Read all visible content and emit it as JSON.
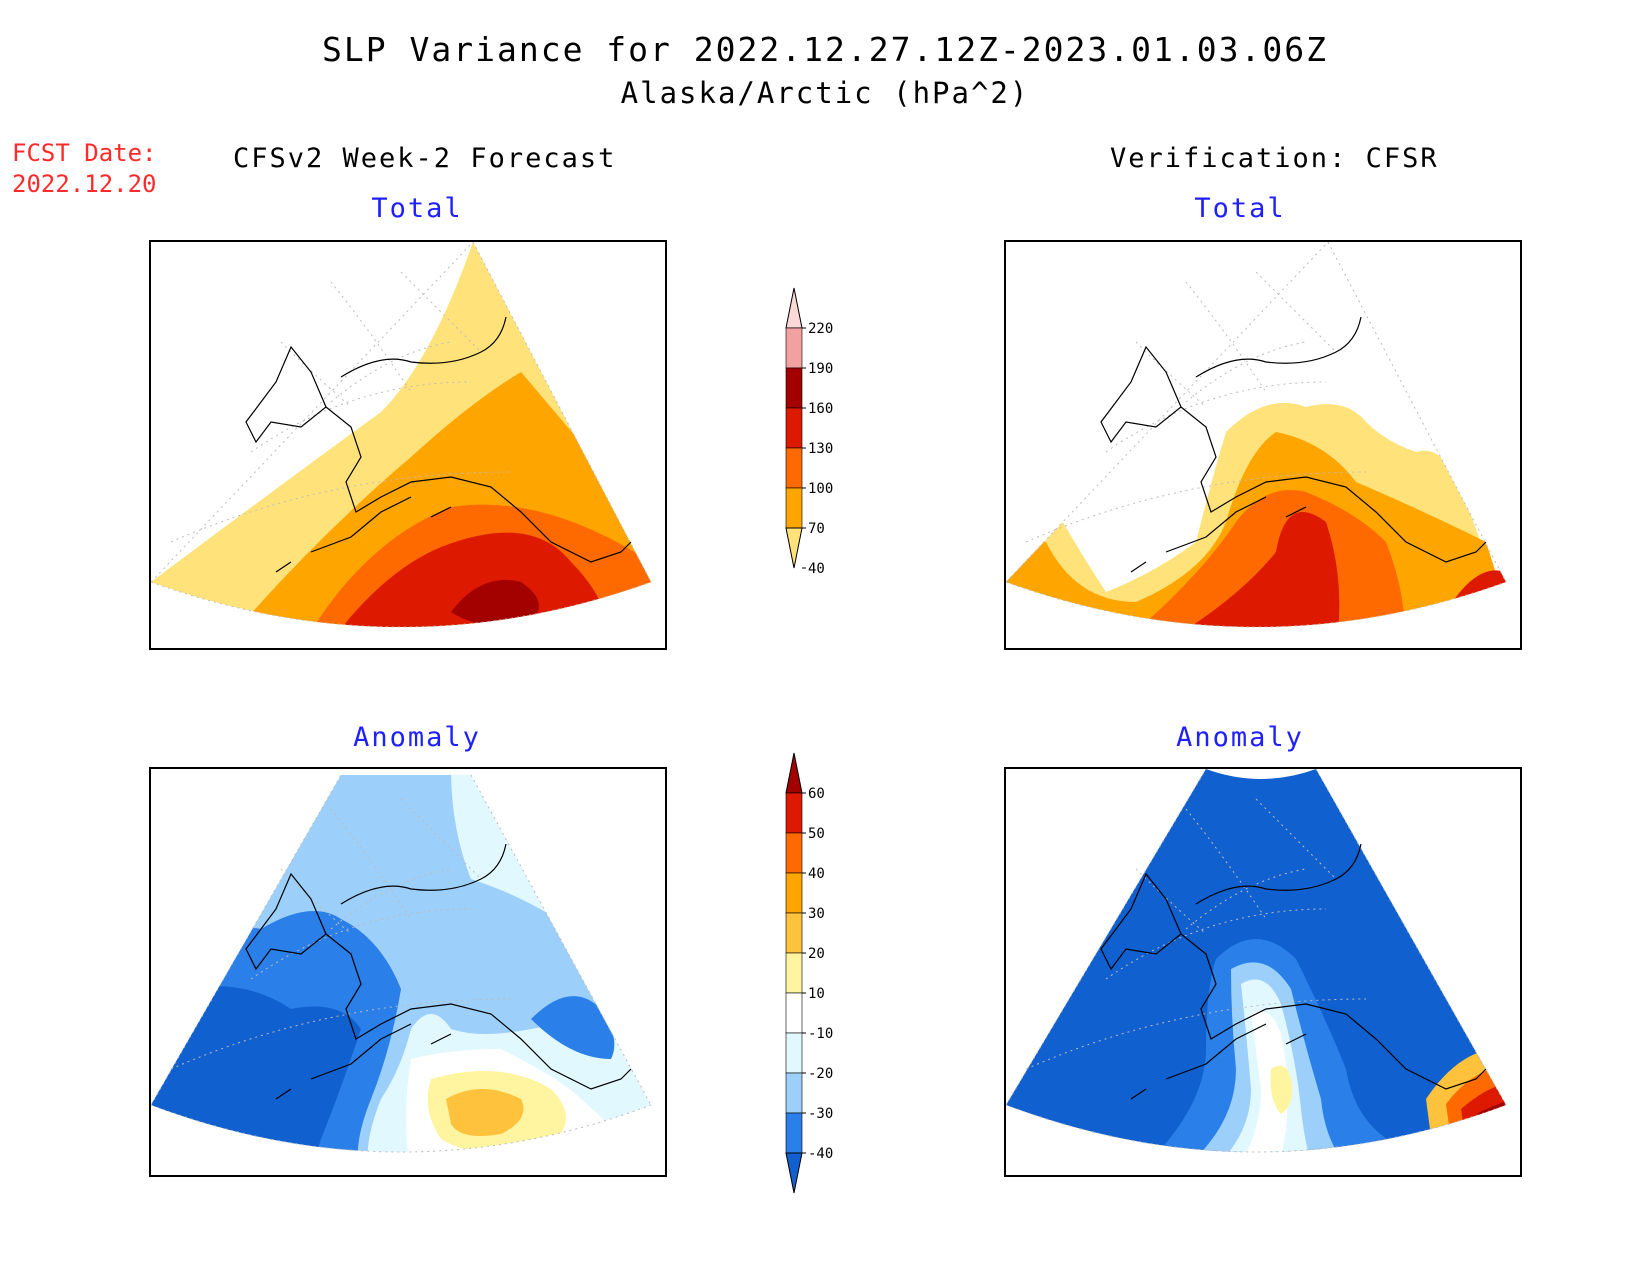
{
  "title": {
    "line1": "SLP Variance for 2022.12.27.12Z-2023.01.03.06Z",
    "line2": "Alaska/Arctic (hPa^2)"
  },
  "fcst_label": {
    "line1": "FCST Date:",
    "line2": "2022.12.20",
    "color": "#ff2a2a"
  },
  "columns": {
    "left": "CFSv2 Week-2 Forecast",
    "right": "Verification: CFSR"
  },
  "panels": [
    {
      "id": "forecast-total",
      "subtitle": "Total"
    },
    {
      "id": "verification-total",
      "subtitle": "Total"
    },
    {
      "id": "forecast-anomaly",
      "subtitle": "Anomaly"
    },
    {
      "id": "verification-anomaly",
      "subtitle": "Anomaly"
    }
  ],
  "colorbars": {
    "total": {
      "labels": [
        "220",
        "190",
        "160",
        "130",
        "100",
        "70",
        "40"
      ],
      "colors": [
        "#fbd9d9",
        "#f2a0a0",
        "#a30000",
        "#dd1a00",
        "#ff6a00",
        "#ffa500",
        "#ffe37a"
      ]
    },
    "anomaly": {
      "labels": [
        "60",
        "50",
        "40",
        "30",
        "20",
        "10",
        "-10",
        "-20",
        "-30",
        "-40"
      ],
      "colors": [
        "#a30000",
        "#dd1a00",
        "#ff6a00",
        "#ffa500",
        "#ffc23c",
        "#fff5a0",
        "#ffffff",
        "#e2f8ff",
        "#9ccffa",
        "#2a7fe8",
        "#1160d0"
      ]
    }
  }
}
